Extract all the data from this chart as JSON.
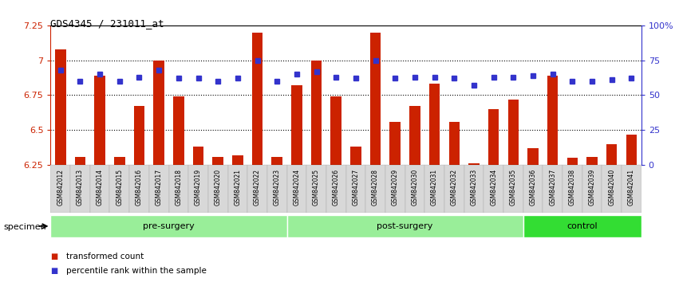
{
  "title": "GDS4345 / 231011_at",
  "samples": [
    "GSM842012",
    "GSM842013",
    "GSM842014",
    "GSM842015",
    "GSM842016",
    "GSM842017",
    "GSM842018",
    "GSM842019",
    "GSM842020",
    "GSM842021",
    "GSM842022",
    "GSM842023",
    "GSM842024",
    "GSM842025",
    "GSM842026",
    "GSM842027",
    "GSM842028",
    "GSM842029",
    "GSM842030",
    "GSM842031",
    "GSM842032",
    "GSM842033",
    "GSM842034",
    "GSM842035",
    "GSM842036",
    "GSM842037",
    "GSM842038",
    "GSM842039",
    "GSM842040",
    "GSM842041"
  ],
  "bar_values": [
    7.08,
    6.31,
    6.89,
    6.31,
    6.67,
    7.0,
    6.74,
    6.38,
    6.31,
    6.32,
    7.2,
    6.31,
    6.82,
    7.0,
    6.74,
    6.38,
    7.2,
    6.56,
    6.67,
    6.83,
    6.56,
    6.26,
    6.65,
    6.72,
    6.37,
    6.89,
    6.3,
    6.31,
    6.4,
    6.47
  ],
  "percentile_pct": [
    68,
    60,
    65,
    60,
    63,
    68,
    62,
    62,
    60,
    62,
    75,
    60,
    65,
    67,
    63,
    62,
    75,
    62,
    63,
    63,
    62,
    57,
    63,
    63,
    64,
    65,
    60,
    60,
    61,
    62
  ],
  "bar_color": "#cc2200",
  "percentile_color": "#3333cc",
  "ymin": 6.25,
  "ymax": 7.25,
  "yticks": [
    6.25,
    6.5,
    6.75,
    7.0,
    7.25
  ],
  "ytick_labels": [
    "6.25",
    "6.5",
    "6.75",
    "7",
    "7.25"
  ],
  "right_yticks": [
    0,
    25,
    50,
    75,
    100
  ],
  "right_ytick_labels": [
    "0",
    "25",
    "50",
    "75",
    "100%"
  ],
  "groups": [
    {
      "label": "pre-surgery",
      "start": 0,
      "end": 12,
      "color": "#99ee99"
    },
    {
      "label": "post-surgery",
      "start": 12,
      "end": 24,
      "color": "#99ee99"
    },
    {
      "label": "control",
      "start": 24,
      "end": 30,
      "color": "#33dd33"
    }
  ],
  "legend_items": [
    {
      "label": "transformed count",
      "color": "#cc2200"
    },
    {
      "label": "percentile rank within the sample",
      "color": "#3333cc"
    }
  ],
  "specimen_label": "specimen"
}
